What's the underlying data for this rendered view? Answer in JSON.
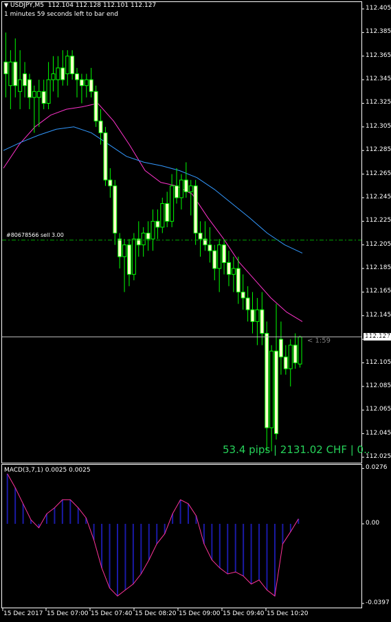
{
  "header": {
    "symbol": "USDJPY,M5",
    "ohlc": "112.104 112.128 112.101 112.127",
    "bar_timer": "1 minutes 59 seconds left to bar end"
  },
  "order_line": {
    "label": "#80678566 sell 3.00",
    "price": 112.209
  },
  "current_price": {
    "label": "112.127",
    "value": 112.127
  },
  "countdown": "< 1:59",
  "pl_text": "53.4 pips | 2131.02 CHF | 0..",
  "macd": {
    "title": "MACD(3,7,1) 0.0025 0.0025"
  },
  "colors": {
    "background": "#000000",
    "candle": "#00ff00",
    "candle_body": "#ffffcc",
    "ma_fast": "#ff33cc",
    "ma_slow": "#3399ff",
    "macd_hist": "#1a1aa6",
    "macd_line": "#ff3399",
    "order_line": "#00aa00",
    "pl_text": "#26d35a"
  },
  "price_axis": {
    "ticks": [
      "112.405",
      "112.385",
      "112.365",
      "112.345",
      "112.325",
      "112.305",
      "112.285",
      "112.265",
      "112.245",
      "112.225",
      "112.205",
      "112.185",
      "112.165",
      "112.145",
      "112.125",
      "112.105",
      "112.085",
      "112.065",
      "112.045",
      "112.025"
    ],
    "values": [
      112.405,
      112.385,
      112.365,
      112.345,
      112.325,
      112.305,
      112.285,
      112.265,
      112.245,
      112.225,
      112.205,
      112.185,
      112.165,
      112.145,
      112.125,
      112.105,
      112.085,
      112.065,
      112.045,
      112.025
    ]
  },
  "macd_axis": {
    "ticks": [
      "0.0276",
      "0.00",
      "-0.0397"
    ],
    "values": [
      0.0276,
      0.0,
      -0.0397
    ]
  },
  "time_axis": [
    "15 Dec 2017",
    "15 Dec 07:00",
    "15 Dec 07:40",
    "15 Dec 08:20",
    "15 Dec 09:00",
    "15 Dec 09:40",
    "15 Dec 10:20"
  ],
  "chart_data": {
    "type": "candlestick",
    "symbol": "USDJPY",
    "timeframe": "M5",
    "ylim": [
      112.02,
      112.41
    ],
    "candles": [
      {
        "o": 112.36,
        "h": 112.385,
        "l": 112.33,
        "c": 112.35
      },
      {
        "o": 112.34,
        "h": 112.37,
        "l": 112.32,
        "c": 112.36
      },
      {
        "o": 112.36,
        "h": 112.38,
        "l": 112.33,
        "c": 112.34
      },
      {
        "o": 112.335,
        "h": 112.37,
        "l": 112.32,
        "c": 112.345
      },
      {
        "o": 112.35,
        "h": 112.36,
        "l": 112.33,
        "c": 112.34
      },
      {
        "o": 112.345,
        "h": 112.35,
        "l": 112.32,
        "c": 112.33
      },
      {
        "o": 112.33,
        "h": 112.34,
        "l": 112.3,
        "c": 112.335
      },
      {
        "o": 112.33,
        "h": 112.345,
        "l": 112.305,
        "c": 112.335
      },
      {
        "o": 112.335,
        "h": 112.345,
        "l": 112.32,
        "c": 112.325
      },
      {
        "o": 112.325,
        "h": 112.36,
        "l": 112.32,
        "c": 112.345
      },
      {
        "o": 112.345,
        "h": 112.365,
        "l": 112.335,
        "c": 112.35
      },
      {
        "o": 112.345,
        "h": 112.365,
        "l": 112.33,
        "c": 112.355
      },
      {
        "o": 112.355,
        "h": 112.37,
        "l": 112.34,
        "c": 112.345
      },
      {
        "o": 112.35,
        "h": 112.37,
        "l": 112.34,
        "c": 112.365
      },
      {
        "o": 112.365,
        "h": 112.37,
        "l": 112.345,
        "c": 112.35
      },
      {
        "o": 112.35,
        "h": 112.355,
        "l": 112.33,
        "c": 112.345
      },
      {
        "o": 112.345,
        "h": 112.35,
        "l": 112.325,
        "c": 112.34
      },
      {
        "o": 112.34,
        "h": 112.35,
        "l": 112.33,
        "c": 112.345
      },
      {
        "o": 112.345,
        "h": 112.355,
        "l": 112.33,
        "c": 112.335
      },
      {
        "o": 112.335,
        "h": 112.34,
        "l": 112.305,
        "c": 112.31
      },
      {
        "o": 112.31,
        "h": 112.32,
        "l": 112.29,
        "c": 112.3
      },
      {
        "o": 112.3,
        "h": 112.305,
        "l": 112.255,
        "c": 112.26
      },
      {
        "o": 112.26,
        "h": 112.27,
        "l": 112.245,
        "c": 112.255
      },
      {
        "o": 112.255,
        "h": 112.26,
        "l": 112.205,
        "c": 112.215
      },
      {
        "o": 112.21,
        "h": 112.215,
        "l": 112.185,
        "c": 112.195
      },
      {
        "o": 112.195,
        "h": 112.21,
        "l": 112.165,
        "c": 112.205
      },
      {
        "o": 112.205,
        "h": 112.21,
        "l": 112.17,
        "c": 112.18
      },
      {
        "o": 112.18,
        "h": 112.215,
        "l": 112.175,
        "c": 112.21
      },
      {
        "o": 112.21,
        "h": 112.225,
        "l": 112.195,
        "c": 112.205
      },
      {
        "o": 112.205,
        "h": 112.22,
        "l": 112.195,
        "c": 112.215
      },
      {
        "o": 112.215,
        "h": 112.225,
        "l": 112.2,
        "c": 112.21
      },
      {
        "o": 112.21,
        "h": 112.235,
        "l": 112.2,
        "c": 112.225
      },
      {
        "o": 112.225,
        "h": 112.235,
        "l": 112.21,
        "c": 112.22
      },
      {
        "o": 112.22,
        "h": 112.245,
        "l": 112.215,
        "c": 112.24
      },
      {
        "o": 112.24,
        "h": 112.25,
        "l": 112.22,
        "c": 112.225
      },
      {
        "o": 112.225,
        "h": 112.265,
        "l": 112.22,
        "c": 112.255
      },
      {
        "o": 112.255,
        "h": 112.27,
        "l": 112.24,
        "c": 112.245
      },
      {
        "o": 112.245,
        "h": 112.265,
        "l": 112.235,
        "c": 112.26
      },
      {
        "o": 112.26,
        "h": 112.275,
        "l": 112.245,
        "c": 112.25
      },
      {
        "o": 112.25,
        "h": 112.26,
        "l": 112.23,
        "c": 112.255
      },
      {
        "o": 112.255,
        "h": 112.26,
        "l": 112.205,
        "c": 112.215
      },
      {
        "o": 112.215,
        "h": 112.225,
        "l": 112.195,
        "c": 112.21
      },
      {
        "o": 112.21,
        "h": 112.225,
        "l": 112.2,
        "c": 112.205
      },
      {
        "o": 112.205,
        "h": 112.22,
        "l": 112.19,
        "c": 112.2
      },
      {
        "o": 112.2,
        "h": 112.205,
        "l": 112.175,
        "c": 112.185
      },
      {
        "o": 112.185,
        "h": 112.21,
        "l": 112.165,
        "c": 112.205
      },
      {
        "o": 112.205,
        "h": 112.21,
        "l": 112.18,
        "c": 112.19
      },
      {
        "o": 112.19,
        "h": 112.2,
        "l": 112.17,
        "c": 112.18
      },
      {
        "o": 112.18,
        "h": 112.195,
        "l": 112.165,
        "c": 112.185
      },
      {
        "o": 112.185,
        "h": 112.195,
        "l": 112.155,
        "c": 112.165
      },
      {
        "o": 112.165,
        "h": 112.18,
        "l": 112.15,
        "c": 112.16
      },
      {
        "o": 112.16,
        "h": 112.17,
        "l": 112.14,
        "c": 112.15
      },
      {
        "o": 112.15,
        "h": 112.165,
        "l": 112.13,
        "c": 112.14
      },
      {
        "o": 112.14,
        "h": 112.16,
        "l": 112.12,
        "c": 112.15
      },
      {
        "o": 112.15,
        "h": 112.165,
        "l": 112.12,
        "c": 112.13
      },
      {
        "o": 112.13,
        "h": 112.14,
        "l": 112.03,
        "c": 112.05
      },
      {
        "o": 112.05,
        "h": 112.12,
        "l": 112.03,
        "c": 112.115
      },
      {
        "o": 112.115,
        "h": 112.155,
        "l": 112.04,
        "c": 112.045
      },
      {
        "o": 112.125,
        "h": 112.14,
        "l": 112.095,
        "c": 112.11
      },
      {
        "o": 112.11,
        "h": 112.12,
        "l": 112.095,
        "c": 112.1
      },
      {
        "o": 112.1,
        "h": 112.125,
        "l": 112.085,
        "c": 112.12
      },
      {
        "o": 112.12,
        "h": 112.13,
        "l": 112.1,
        "c": 112.105
      },
      {
        "o": 112.104,
        "h": 112.128,
        "l": 112.101,
        "c": 112.127
      }
    ],
    "ma_fast": [
      112.27,
      112.29,
      112.305,
      112.315,
      112.32,
      112.322,
      112.325,
      112.31,
      112.29,
      112.268,
      112.258,
      112.255,
      112.248,
      112.228,
      112.21,
      112.19,
      112.175,
      112.16,
      112.148,
      112.14
    ],
    "ma_slow": [
      112.285,
      112.292,
      112.298,
      112.303,
      112.305,
      112.3,
      112.29,
      112.28,
      112.275,
      112.272,
      112.268,
      112.262,
      112.252,
      112.24,
      112.228,
      112.215,
      112.205,
      112.198
    ],
    "macd_hist": [
      0.025,
      0.018,
      0.01,
      0.002,
      -0.002,
      0.005,
      0.008,
      0.012,
      0.012,
      0.008,
      0.003,
      -0.008,
      -0.022,
      -0.032,
      -0.036,
      -0.033,
      -0.03,
      -0.025,
      -0.018,
      -0.01,
      -0.005,
      0.005,
      0.012,
      0.01,
      0.004,
      -0.01,
      -0.018,
      -0.022,
      -0.025,
      -0.024,
      -0.026,
      -0.03,
      -0.028,
      -0.033,
      -0.036,
      -0.01,
      -0.004,
      0.0025
    ]
  }
}
